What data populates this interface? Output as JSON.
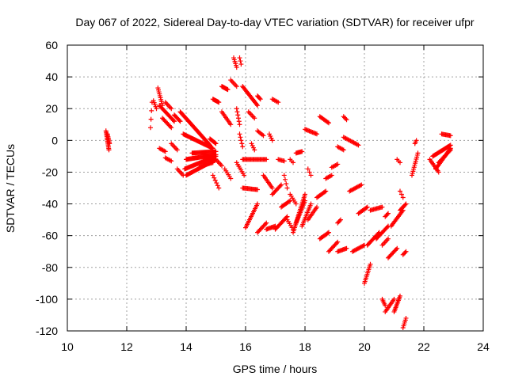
{
  "chart_data": {
    "type": "scatter",
    "title": "Day 067 of 2022, Sidereal Day-to-day VTEC variation (SDTVAR) for receiver ufpr",
    "xlabel": "GPS time / hours",
    "ylabel": "SDTVAR / TECUs",
    "xlim": [
      10,
      24
    ],
    "ylim": [
      -120,
      60
    ],
    "xticks": [
      10,
      12,
      14,
      16,
      18,
      20,
      22,
      24
    ],
    "yticks": [
      -120,
      -100,
      -80,
      -60,
      -40,
      -20,
      0,
      20,
      40,
      60
    ],
    "grid": true,
    "marker": "+",
    "color": "#ff0000",
    "segments": [
      {
        "x0": 11.3,
        "y0": 6,
        "x1": 11.4,
        "y1": -6,
        "n": 14
      },
      {
        "x0": 11.35,
        "y0": 4,
        "x1": 11.42,
        "y1": -2,
        "n": 8
      },
      {
        "x0": 12.8,
        "y0": 8,
        "x1": 12.85,
        "y1": 24,
        "n": 4
      },
      {
        "x0": 12.9,
        "y0": 25,
        "x1": 13.0,
        "y1": 20,
        "n": 5
      },
      {
        "x0": 13.05,
        "y0": 33,
        "x1": 13.2,
        "y1": 22,
        "n": 10
      },
      {
        "x0": 13.1,
        "y0": 22,
        "x1": 13.6,
        "y1": 12,
        "n": 18
      },
      {
        "x0": 13.3,
        "y0": 24,
        "x1": 13.5,
        "y1": 20,
        "n": 6
      },
      {
        "x0": 13.6,
        "y0": 16,
        "x1": 13.8,
        "y1": 12,
        "n": 8
      },
      {
        "x0": 13.1,
        "y0": -5,
        "x1": 13.3,
        "y1": -7,
        "n": 6
      },
      {
        "x0": 13.2,
        "y0": 14,
        "x1": 13.5,
        "y1": 8,
        "n": 10
      },
      {
        "x0": 13.3,
        "y0": -11,
        "x1": 13.5,
        "y1": -13,
        "n": 6
      },
      {
        "x0": 13.5,
        "y0": -2,
        "x1": 13.7,
        "y1": -6,
        "n": 6
      },
      {
        "x0": 13.7,
        "y0": -18,
        "x1": 13.9,
        "y1": -22,
        "n": 6
      },
      {
        "x0": 13.8,
        "y0": 18,
        "x1": 14.8,
        "y1": -3,
        "n": 40
      },
      {
        "x0": 13.9,
        "y0": 4,
        "x1": 14.9,
        "y1": -5,
        "n": 36
      },
      {
        "x0": 14.0,
        "y0": -12,
        "x1": 15.0,
        "y1": -9,
        "n": 40
      },
      {
        "x0": 13.95,
        "y0": -18,
        "x1": 15.0,
        "y1": -10,
        "n": 40
      },
      {
        "x0": 14.0,
        "y0": -22,
        "x1": 15.0,
        "y1": -12,
        "n": 36
      },
      {
        "x0": 14.2,
        "y0": -8,
        "x1": 15.0,
        "y1": -7,
        "n": 30
      },
      {
        "x0": 14.5,
        "y0": -16,
        "x1": 14.9,
        "y1": -14,
        "n": 12
      },
      {
        "x0": 14.8,
        "y0": 1,
        "x1": 15.0,
        "y1": -2,
        "n": 8
      },
      {
        "x0": 14.9,
        "y0": 26,
        "x1": 15.1,
        "y1": 24,
        "n": 10
      },
      {
        "x0": 15.2,
        "y0": 34,
        "x1": 15.4,
        "y1": 32,
        "n": 10
      },
      {
        "x0": 14.9,
        "y0": -22,
        "x1": 15.1,
        "y1": -30,
        "n": 6
      },
      {
        "x0": 15.0,
        "y0": -12,
        "x1": 15.2,
        "y1": -16,
        "n": 6
      },
      {
        "x0": 15.2,
        "y0": 18,
        "x1": 15.5,
        "y1": 10,
        "n": 10
      },
      {
        "x0": 15.3,
        "y0": -18,
        "x1": 15.5,
        "y1": -24,
        "n": 6
      },
      {
        "x0": 15.6,
        "y0": 52,
        "x1": 15.7,
        "y1": 46,
        "n": 6
      },
      {
        "x0": 15.8,
        "y0": 52,
        "x1": 15.85,
        "y1": 48,
        "n": 3
      },
      {
        "x0": 15.5,
        "y0": 38,
        "x1": 15.7,
        "y1": 34,
        "n": 6
      },
      {
        "x0": 15.7,
        "y0": 20,
        "x1": 15.8,
        "y1": 10,
        "n": 6
      },
      {
        "x0": 15.8,
        "y0": 4,
        "x1": 15.9,
        "y1": -4,
        "n": 5
      },
      {
        "x0": 15.7,
        "y0": -14,
        "x1": 15.95,
        "y1": -22,
        "n": 8
      },
      {
        "x0": 15.9,
        "y0": 34,
        "x1": 16.4,
        "y1": 22,
        "n": 20
      },
      {
        "x0": 15.9,
        "y0": -12,
        "x1": 16.7,
        "y1": -12,
        "n": 24
      },
      {
        "x0": 15.9,
        "y0": -30,
        "x1": 16.4,
        "y1": -31,
        "n": 16
      },
      {
        "x0": 16.0,
        "y0": -55,
        "x1": 16.4,
        "y1": -40,
        "n": 16
      },
      {
        "x0": 16.1,
        "y0": 18,
        "x1": 16.3,
        "y1": 14,
        "n": 6
      },
      {
        "x0": 16.2,
        "y0": -2,
        "x1": 16.3,
        "y1": -6,
        "n": 4
      },
      {
        "x0": 16.4,
        "y0": 28,
        "x1": 16.5,
        "y1": 26,
        "n": 5
      },
      {
        "x0": 16.4,
        "y0": 6,
        "x1": 16.6,
        "y1": 3,
        "n": 6
      },
      {
        "x0": 16.4,
        "y0": -58,
        "x1": 16.7,
        "y1": -52,
        "n": 10
      },
      {
        "x0": 16.6,
        "y0": -22,
        "x1": 16.9,
        "y1": -30,
        "n": 10
      },
      {
        "x0": 16.7,
        "y0": -56,
        "x1": 17.0,
        "y1": -54,
        "n": 10
      },
      {
        "x0": 16.8,
        "y0": 4,
        "x1": 16.9,
        "y1": 0,
        "n": 4
      },
      {
        "x0": 16.9,
        "y0": 26,
        "x1": 17.1,
        "y1": 24,
        "n": 6
      },
      {
        "x0": 16.9,
        "y0": -34,
        "x1": 17.2,
        "y1": -28,
        "n": 10
      },
      {
        "x0": 17.0,
        "y0": -56,
        "x1": 17.4,
        "y1": -48,
        "n": 14
      },
      {
        "x0": 17.1,
        "y0": -12,
        "x1": 17.3,
        "y1": -13,
        "n": 6
      },
      {
        "x0": 17.2,
        "y0": -42,
        "x1": 17.5,
        "y1": -38,
        "n": 10
      },
      {
        "x0": 17.3,
        "y0": -22,
        "x1": 17.4,
        "y1": -30,
        "n": 4
      },
      {
        "x0": 17.4,
        "y0": -50,
        "x1": 17.6,
        "y1": -56,
        "n": 6
      },
      {
        "x0": 17.5,
        "y0": -34,
        "x1": 17.7,
        "y1": -40,
        "n": 6
      },
      {
        "x0": 17.5,
        "y0": -12,
        "x1": 17.6,
        "y1": -14,
        "n": 3
      },
      {
        "x0": 17.6,
        "y0": -58,
        "x1": 18.0,
        "y1": -34,
        "n": 24
      },
      {
        "x0": 17.7,
        "y0": -52,
        "x1": 18.0,
        "y1": -38,
        "n": 16
      },
      {
        "x0": 17.7,
        "y0": -8,
        "x1": 17.9,
        "y1": -7,
        "n": 8
      },
      {
        "x0": 17.9,
        "y0": -54,
        "x1": 18.2,
        "y1": -40,
        "n": 14
      },
      {
        "x0": 18.1,
        "y0": -50,
        "x1": 18.4,
        "y1": -42,
        "n": 10
      },
      {
        "x0": 18.1,
        "y0": -18,
        "x1": 18.2,
        "y1": -22,
        "n": 3
      },
      {
        "x0": 18.0,
        "y0": 7,
        "x1": 18.4,
        "y1": 4,
        "n": 12
      },
      {
        "x0": 18.4,
        "y0": -36,
        "x1": 18.7,
        "y1": -32,
        "n": 10
      },
      {
        "x0": 18.5,
        "y0": 15,
        "x1": 18.8,
        "y1": 11,
        "n": 10
      },
      {
        "x0": 18.5,
        "y0": -62,
        "x1": 18.8,
        "y1": -58,
        "n": 10
      },
      {
        "x0": 18.7,
        "y0": -24,
        "x1": 18.9,
        "y1": -22,
        "n": 6
      },
      {
        "x0": 18.8,
        "y0": -70,
        "x1": 19.1,
        "y1": -64,
        "n": 10
      },
      {
        "x0": 18.9,
        "y0": -17,
        "x1": 19.1,
        "y1": -15,
        "n": 6
      },
      {
        "x0": 19.1,
        "y0": -70,
        "x1": 19.4,
        "y1": -68,
        "n": 10
      },
      {
        "x0": 19.1,
        "y0": -52,
        "x1": 19.2,
        "y1": -50,
        "n": 4
      },
      {
        "x0": 19.1,
        "y0": -4,
        "x1": 19.3,
        "y1": -6,
        "n": 6
      },
      {
        "x0": 19.3,
        "y0": 15,
        "x1": 19.4,
        "y1": 13,
        "n": 4
      },
      {
        "x0": 19.3,
        "y0": 2,
        "x1": 19.8,
        "y1": -3,
        "n": 14
      },
      {
        "x0": 19.5,
        "y0": -32,
        "x1": 19.9,
        "y1": -28,
        "n": 12
      },
      {
        "x0": 19.6,
        "y0": -70,
        "x1": 20.0,
        "y1": -66,
        "n": 12
      },
      {
        "x0": 19.8,
        "y0": -46,
        "x1": 20.1,
        "y1": -42,
        "n": 10
      },
      {
        "x0": 20.0,
        "y0": -90,
        "x1": 20.2,
        "y1": -78,
        "n": 12
      },
      {
        "x0": 20.1,
        "y0": -66,
        "x1": 20.5,
        "y1": -58,
        "n": 14
      },
      {
        "x0": 20.2,
        "y0": -44,
        "x1": 20.6,
        "y1": -42,
        "n": 12
      },
      {
        "x0": 20.4,
        "y0": -62,
        "x1": 20.8,
        "y1": -54,
        "n": 14
      },
      {
        "x0": 20.6,
        "y0": -100,
        "x1": 20.7,
        "y1": -104,
        "n": 5
      },
      {
        "x0": 20.6,
        "y0": -66,
        "x1": 20.8,
        "y1": -62,
        "n": 6
      },
      {
        "x0": 20.7,
        "y0": -48,
        "x1": 20.8,
        "y1": -46,
        "n": 4
      },
      {
        "x0": 20.7,
        "y0": -108,
        "x1": 21.0,
        "y1": -100,
        "n": 10
      },
      {
        "x0": 20.8,
        "y0": -74,
        "x1": 21.1,
        "y1": -68,
        "n": 10
      },
      {
        "x0": 20.9,
        "y0": -54,
        "x1": 21.3,
        "y1": -44,
        "n": 14
      },
      {
        "x0": 21.0,
        "y0": -108,
        "x1": 21.2,
        "y1": -98,
        "n": 12
      },
      {
        "x0": 21.1,
        "y0": -12,
        "x1": 21.2,
        "y1": -14,
        "n": 3
      },
      {
        "x0": 21.2,
        "y0": -32,
        "x1": 21.3,
        "y1": -36,
        "n": 3
      },
      {
        "x0": 21.2,
        "y0": -44,
        "x1": 21.4,
        "y1": -40,
        "n": 8
      },
      {
        "x0": 21.3,
        "y0": -72,
        "x1": 21.4,
        "y1": -70,
        "n": 4
      },
      {
        "x0": 21.3,
        "y0": -118,
        "x1": 21.4,
        "y1": -112,
        "n": 6
      },
      {
        "x0": 21.6,
        "y0": -22,
        "x1": 21.8,
        "y1": -8,
        "n": 12
      },
      {
        "x0": 21.7,
        "y0": -2,
        "x1": 21.75,
        "y1": 0,
        "n": 3
      },
      {
        "x0": 22.2,
        "y0": -12,
        "x1": 22.5,
        "y1": -20,
        "n": 10
      },
      {
        "x0": 22.3,
        "y0": -10,
        "x1": 22.9,
        "y1": -3,
        "n": 24
      },
      {
        "x0": 22.4,
        "y0": -18,
        "x1": 22.9,
        "y1": -5,
        "n": 20
      },
      {
        "x0": 22.5,
        "y0": -14,
        "x1": 22.9,
        "y1": -6,
        "n": 14
      },
      {
        "x0": 22.6,
        "y0": 4,
        "x1": 22.9,
        "y1": 3,
        "n": 10
      }
    ]
  }
}
